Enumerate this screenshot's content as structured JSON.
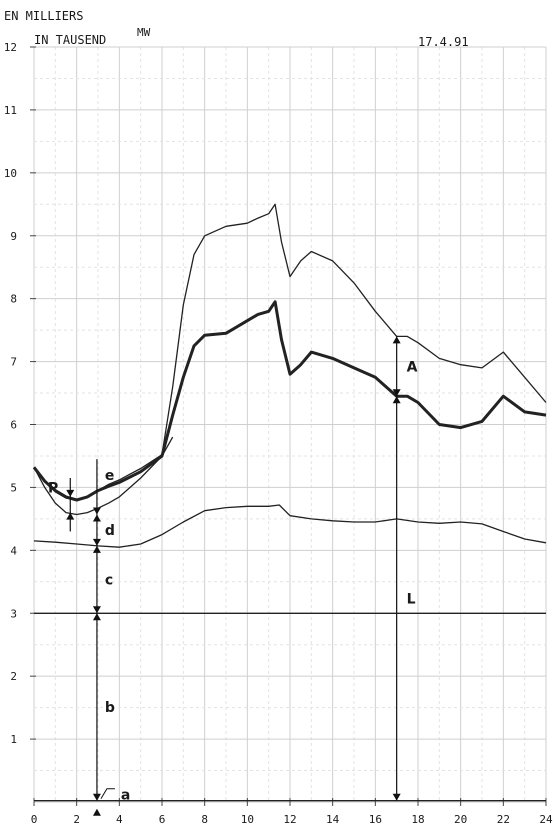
{
  "header": {
    "line1": "EN MILLIERS",
    "line2": "IN TAUSEND",
    "unit": "MW",
    "date": "17.4.91"
  },
  "chart_data": {
    "type": "line",
    "xlim": [
      0,
      24
    ],
    "ylim": [
      0,
      12
    ],
    "x_ticks": [
      "0",
      "2",
      "4",
      "6",
      "8",
      "10",
      "12",
      "14",
      "16",
      "18",
      "20",
      "22",
      "24"
    ],
    "y_ticks": [
      "1",
      "2",
      "3",
      "4",
      "5",
      "6",
      "7",
      "8",
      "9",
      "10",
      "11",
      "12"
    ],
    "grid": true,
    "series": [
      {
        "style": "thin",
        "x": [
          0,
          0.5,
          1,
          1.5,
          2,
          2.5,
          3,
          3.5,
          4,
          5,
          6,
          6.5,
          7,
          7.5,
          8,
          9,
          10,
          10.5,
          11,
          11.3,
          11.6,
          12,
          12.5,
          13,
          14,
          15,
          16,
          17,
          17.5,
          18,
          19,
          20,
          21,
          22,
          23,
          24
        ],
        "y": [
          5.32,
          5.1,
          4.93,
          4.83,
          4.8,
          4.85,
          4.95,
          5.05,
          5.12,
          5.3,
          5.52,
          6.6,
          7.9,
          8.7,
          9.0,
          9.15,
          9.2,
          9.28,
          9.35,
          9.5,
          8.9,
          8.35,
          8.6,
          8.75,
          8.6,
          8.25,
          7.8,
          7.4,
          7.4,
          7.3,
          7.05,
          6.95,
          6.9,
          7.15,
          6.75,
          6.35
        ]
      },
      {
        "style": "bold",
        "x": [
          0,
          0.5,
          1,
          1.5,
          2,
          2.5,
          3,
          3.5,
          4,
          5,
          6,
          6.5,
          7,
          7.5,
          8,
          9,
          10,
          10.5,
          11,
          11.3,
          11.6,
          12,
          12.5,
          13,
          14,
          15,
          16,
          17,
          17.5,
          18,
          19,
          20,
          21,
          22,
          23,
          24
        ],
        "y": [
          5.32,
          5.1,
          4.95,
          4.85,
          4.8,
          4.85,
          4.95,
          5.02,
          5.08,
          5.25,
          5.5,
          6.15,
          6.75,
          7.25,
          7.42,
          7.45,
          7.65,
          7.75,
          7.8,
          7.95,
          7.35,
          6.8,
          6.95,
          7.15,
          7.05,
          6.9,
          6.75,
          6.45,
          6.45,
          6.35,
          6.0,
          5.95,
          6.05,
          6.45,
          6.2,
          6.15
        ]
      },
      {
        "style": "thin",
        "x": [
          0,
          0.5,
          1,
          1.5,
          2,
          2.5,
          3,
          3.5,
          4,
          5,
          6,
          6.5
        ],
        "y": [
          5.32,
          5.0,
          4.75,
          4.6,
          4.57,
          4.6,
          4.67,
          4.75,
          4.85,
          5.15,
          5.5,
          5.8
        ]
      },
      {
        "style": "thin",
        "x": [
          0,
          1,
          2,
          3,
          4,
          5,
          6,
          7,
          8,
          9,
          10,
          11,
          11.5,
          12,
          13,
          14,
          15,
          16,
          17,
          18,
          19,
          20,
          21,
          22,
          23,
          24
        ],
        "y": [
          4.15,
          4.13,
          4.1,
          4.07,
          4.05,
          4.1,
          4.25,
          4.45,
          4.63,
          4.68,
          4.7,
          4.7,
          4.72,
          4.55,
          4.5,
          4.47,
          4.45,
          4.45,
          4.5,
          4.45,
          4.43,
          4.45,
          4.42,
          4.3,
          4.18,
          4.12
        ]
      },
      {
        "style": "thin",
        "x": [
          0,
          24
        ],
        "y": [
          3.0,
          3.0
        ]
      },
      {
        "style": "thin",
        "x": [
          0,
          24
        ],
        "y": [
          0.02,
          0.02
        ]
      }
    ],
    "annotations": [
      {
        "label": "P",
        "x": 1.7,
        "y_from": 4.6,
        "y_to": 4.85
      },
      {
        "label": "e",
        "x": 2.95,
        "y_from": 4.57,
        "y_to": 5.0
      },
      {
        "label": "d",
        "x": 2.95,
        "y_from": 4.07,
        "y_to": 4.57
      },
      {
        "label": "c",
        "x": 2.95,
        "y_from": 3.0,
        "y_to": 4.07
      },
      {
        "label": "b",
        "x": 2.95,
        "y_from": 0.02,
        "y_to": 3.0
      },
      {
        "label": "a",
        "x": 2.95,
        "y_from": 0,
        "y_to": 0.02
      },
      {
        "label": "A",
        "x": 17.0,
        "y_from": 6.45,
        "y_to": 7.4
      },
      {
        "label": "L",
        "x": 17.0,
        "y_from": 0.02,
        "y_to": 6.45
      }
    ]
  }
}
